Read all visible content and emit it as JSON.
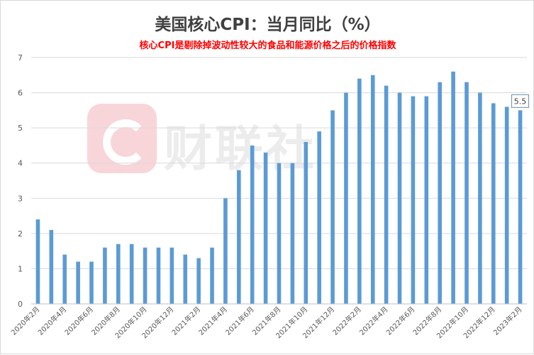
{
  "chart_data": {
    "type": "bar",
    "title": "美国核心CPI：当月同比（%）",
    "subtitle": "核心CPI是剔除掉波动性较大的食品和能源价格之后的价格指数",
    "watermark_text": "财联社",
    "xlabel": "",
    "ylabel": "",
    "ylim": [
      0,
      7
    ],
    "yticks": [
      0,
      1,
      2,
      3,
      4,
      5,
      6,
      7
    ],
    "grid": true,
    "legend": "none",
    "bar_color": "#5b9bd5",
    "gridline_color": "#d9d9d9",
    "categories": [
      "2020年2月",
      "2020年3月",
      "2020年4月",
      "2020年5月",
      "2020年6月",
      "2020年7月",
      "2020年8月",
      "2020年9月",
      "2020年10月",
      "2020年11月",
      "2020年12月",
      "2021年1月",
      "2021年2月",
      "2021年3月",
      "2021年4月",
      "2021年5月",
      "2021年6月",
      "2021年7月",
      "2021年8月",
      "2021年9月",
      "2021年10月",
      "2021年11月",
      "2021年12月",
      "2022年1月",
      "2022年2月",
      "2022年3月",
      "2022年4月",
      "2022年5月",
      "2022年6月",
      "2022年7月",
      "2022年8月",
      "2022年9月",
      "2022年10月",
      "2022年11月",
      "2022年12月",
      "2023年1月",
      "2023年2月"
    ],
    "tick_labels_shown": [
      "2020年2月",
      "2020年4月",
      "2020年6月",
      "2020年8月",
      "2020年10月",
      "2020年12月",
      "2021年2月",
      "2021年4月",
      "2021年6月",
      "2021年8月",
      "2021年10月",
      "2021年12月",
      "2022年2月",
      "2022年4月",
      "2022年6月",
      "2022年8月",
      "2022年10月",
      "2022年12月",
      "2023年2月"
    ],
    "values": [
      2.4,
      2.1,
      1.4,
      1.2,
      1.2,
      1.6,
      1.7,
      1.7,
      1.6,
      1.6,
      1.6,
      1.4,
      1.3,
      1.6,
      3.0,
      3.8,
      4.5,
      4.3,
      4.0,
      4.0,
      4.6,
      4.9,
      5.5,
      6.0,
      6.4,
      6.5,
      6.2,
      6.0,
      5.9,
      5.9,
      6.3,
      6.6,
      6.3,
      6.0,
      5.7,
      5.6,
      5.5
    ],
    "data_label": {
      "category": "2023年2月",
      "text": "5.5"
    }
  }
}
